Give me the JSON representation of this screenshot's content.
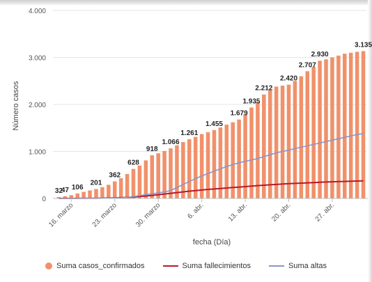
{
  "chart_data": {
    "type": "bar",
    "xlabel": "fecha (Día)",
    "ylabel": "Número casos",
    "ylim": [
      0,
      4000
    ],
    "yticks": [
      {
        "value": 0,
        "label": "0"
      },
      {
        "value": 1000,
        "label": "1.000"
      },
      {
        "value": 2000,
        "label": "2.000"
      },
      {
        "value": 3000,
        "label": "3.000"
      },
      {
        "value": 4000,
        "label": "4.000"
      }
    ],
    "categories": [
      "14.03",
      "15.03",
      "16.03",
      "17.03",
      "18.03",
      "19.03",
      "20.03",
      "21.03",
      "22.03",
      "23.03",
      "24.03",
      "25.03",
      "26.03",
      "27.03",
      "28.03",
      "29.03",
      "30.03",
      "31.03",
      "01.04",
      "02.04",
      "03.04",
      "04.04",
      "05.04",
      "06.04",
      "07.04",
      "08.04",
      "09.04",
      "10.04",
      "11.04",
      "12.04",
      "13.04",
      "14.04",
      "15.04",
      "16.04",
      "17.04",
      "18.04",
      "19.04",
      "20.04",
      "21.04",
      "22.04",
      "23.04",
      "24.04",
      "25.04",
      "26.04",
      "27.04",
      "28.04",
      "29.04",
      "30.04",
      "01.05",
      "02.05"
    ],
    "xticks": [
      {
        "index": 2,
        "label": "16. marzo"
      },
      {
        "index": 9,
        "label": "23. marzo"
      },
      {
        "index": 16,
        "label": "30. marzo"
      },
      {
        "index": 23,
        "label": "6. abr."
      },
      {
        "index": 30,
        "label": "13. abr."
      },
      {
        "index": 37,
        "label": "20. abr."
      },
      {
        "index": 44,
        "label": "27. abr."
      }
    ],
    "series": [
      {
        "name": "Suma casos_confirmados",
        "type": "bar",
        "color": "#f0916b",
        "values": [
          32,
          47,
          70,
          106,
          140,
          170,
          201,
          240,
          290,
          362,
          430,
          520,
          628,
          700,
          810,
          918,
          960,
          1010,
          1066,
          1130,
          1200,
          1261,
          1310,
          1370,
          1410,
          1455,
          1510,
          1570,
          1620,
          1679,
          1790,
          1935,
          2050,
          2212,
          2300,
          2380,
          2400,
          2420,
          2500,
          2600,
          2707,
          2800,
          2930,
          2960,
          3000,
          3040,
          3080,
          3100,
          3120,
          3135
        ]
      },
      {
        "name": "Suma fallecimientos",
        "type": "line",
        "color": "#b8182b",
        "values": [
          0,
          1,
          1,
          2,
          3,
          4,
          5,
          7,
          9,
          12,
          16,
          22,
          30,
          40,
          52,
          65,
          80,
          95,
          110,
          125,
          140,
          155,
          168,
          180,
          192,
          202,
          212,
          222,
          232,
          242,
          252,
          262,
          272,
          282,
          290,
          298,
          306,
          314,
          320,
          326,
          332,
          338,
          344,
          350,
          354,
          358,
          362,
          366,
          370,
          374
        ]
      },
      {
        "name": "Suma altas",
        "type": "line",
        "color": "#8a95c9",
        "values": [
          0,
          0,
          1,
          2,
          3,
          4,
          5,
          6,
          7,
          9,
          12,
          20,
          40,
          60,
          80,
          100,
          120,
          140,
          170,
          230,
          300,
          360,
          420,
          480,
          530,
          580,
          630,
          680,
          720,
          760,
          790,
          820,
          850,
          890,
          930,
          970,
          1000,
          1030,
          1060,
          1090,
          1120,
          1150,
          1180,
          1210,
          1240,
          1270,
          1300,
          1330,
          1360,
          1380
        ]
      }
    ],
    "data_labels": [
      {
        "index": 0,
        "label": "32"
      },
      {
        "index": 1,
        "label": "47"
      },
      {
        "index": 3,
        "label": "106"
      },
      {
        "index": 6,
        "label": "201"
      },
      {
        "index": 9,
        "label": "362"
      },
      {
        "index": 12,
        "label": "628"
      },
      {
        "index": 15,
        "label": "918"
      },
      {
        "index": 18,
        "label": "1.066"
      },
      {
        "index": 21,
        "label": "1.261"
      },
      {
        "index": 25,
        "label": "1.455"
      },
      {
        "index": 29,
        "label": "1.679"
      },
      {
        "index": 31,
        "label": "1.935"
      },
      {
        "index": 33,
        "label": "2.212"
      },
      {
        "index": 37,
        "label": "2.420"
      },
      {
        "index": 40,
        "label": "2.707"
      },
      {
        "index": 42,
        "label": "2.930"
      },
      {
        "index": 49,
        "label": "3.135"
      }
    ],
    "grid": true,
    "legend_position": "bottom"
  }
}
